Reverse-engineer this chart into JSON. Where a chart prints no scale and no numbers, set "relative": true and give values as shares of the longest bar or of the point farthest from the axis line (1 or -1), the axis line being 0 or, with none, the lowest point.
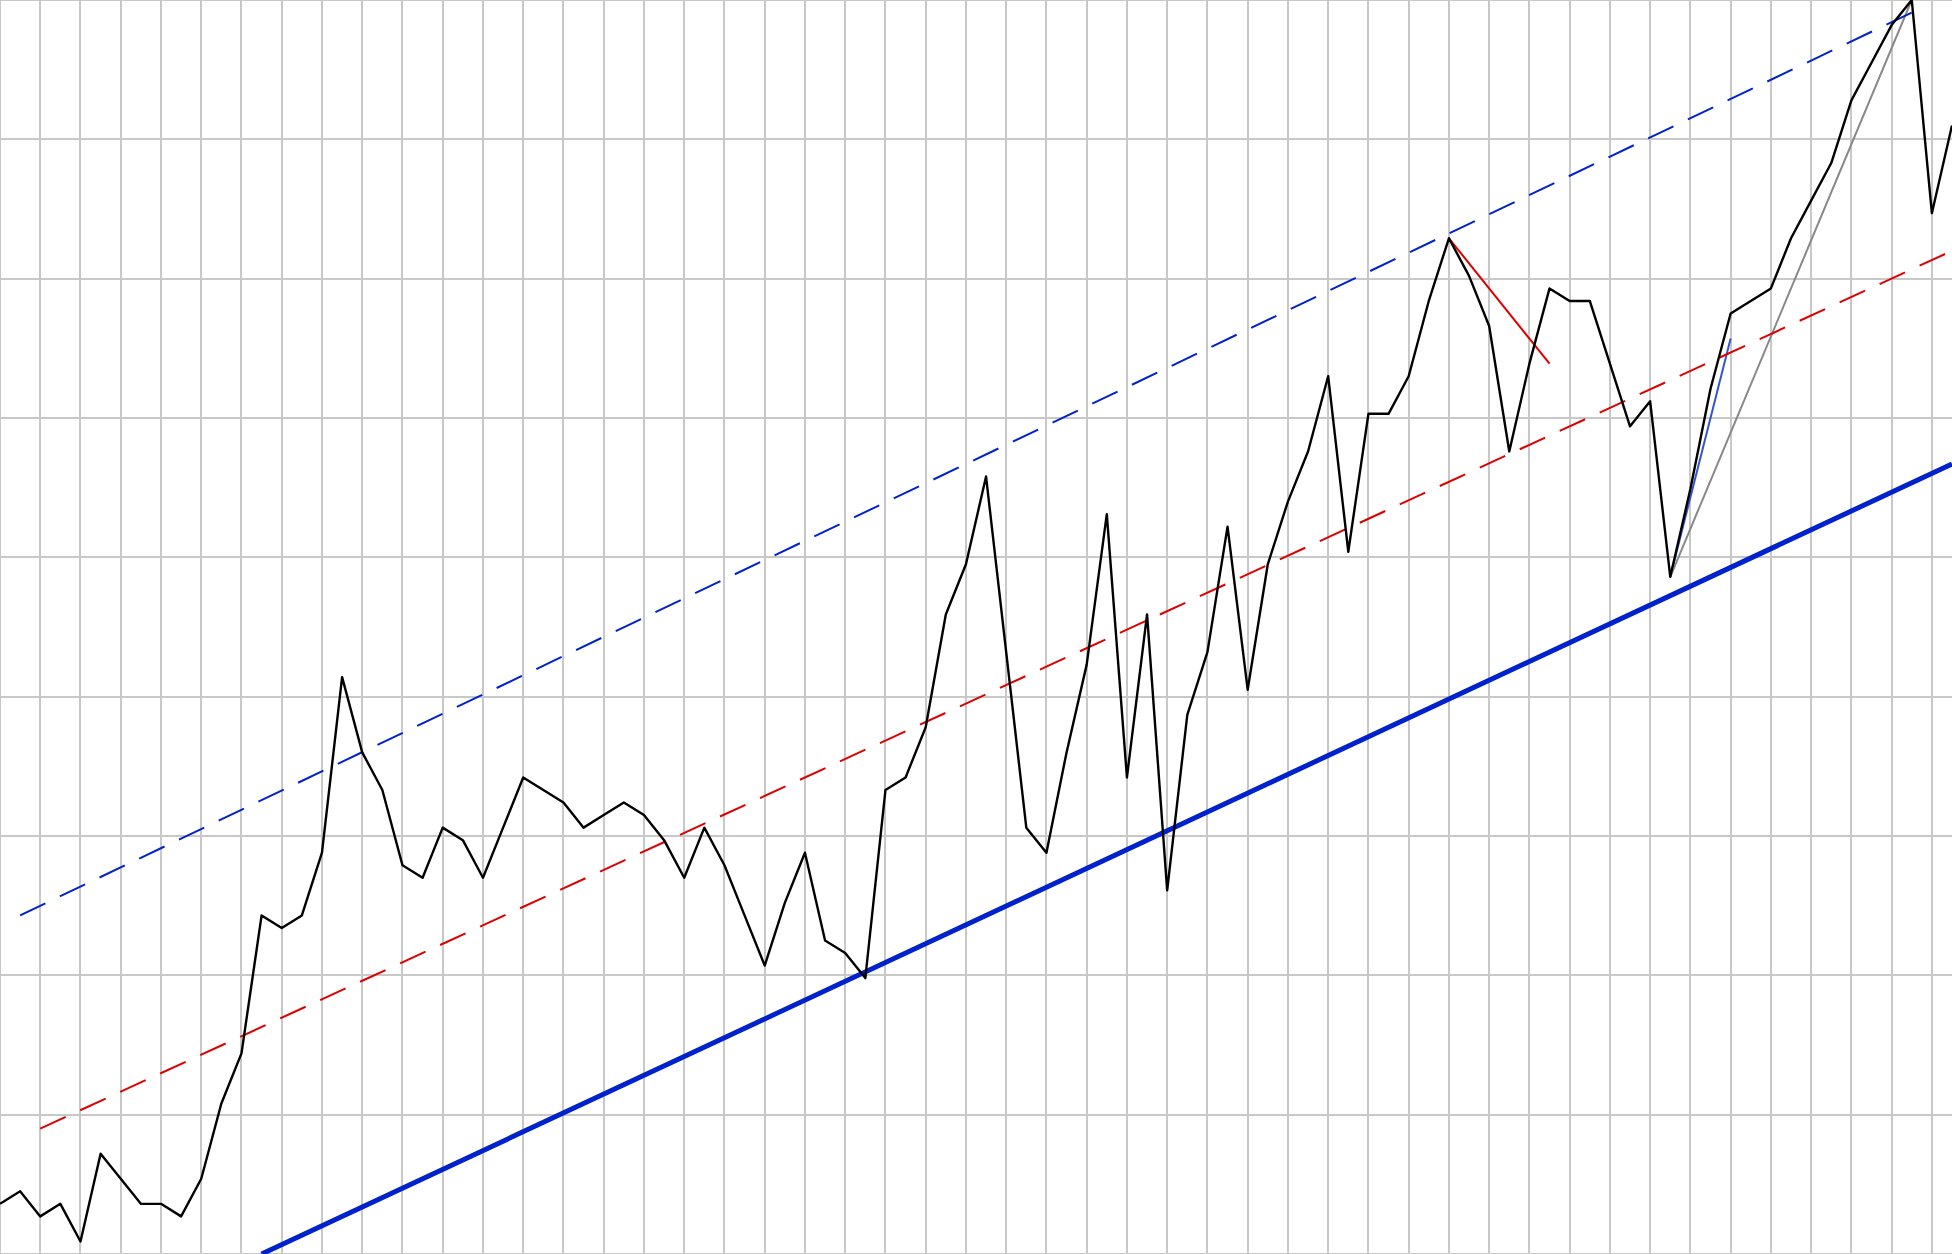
{
  "chart_data": {
    "type": "line",
    "relative": true,
    "grid": true,
    "categories": [
      null,
      null,
      null,
      null,
      null,
      null,
      null,
      null,
      null,
      null,
      null,
      null,
      null,
      null,
      null,
      null,
      null,
      null,
      null,
      null,
      null,
      null,
      null,
      null,
      null,
      null,
      null,
      null,
      null,
      null,
      null,
      null,
      null,
      null,
      null,
      null,
      null,
      null,
      null,
      null,
      null,
      null,
      null,
      null,
      null,
      null,
      null,
      null,
      null,
      null,
      null,
      null,
      null,
      null,
      null,
      null,
      null,
      null,
      null,
      null,
      null,
      null,
      null,
      null,
      null,
      null,
      null,
      null,
      null,
      null,
      null,
      null,
      null,
      null,
      null,
      null,
      null,
      null,
      null,
      null,
      null,
      null,
      null,
      null,
      null,
      null,
      null,
      null,
      null,
      null,
      null,
      null,
      null,
      null,
      null,
      null,
      null,
      null
    ],
    "series": [
      {
        "color": "#000000",
        "line_style": "solid",
        "values": [
          0.04,
          0.05,
          0.03,
          0.04,
          0.01,
          0.08,
          0.06,
          0.04,
          0.04,
          0.03,
          0.06,
          0.12,
          0.16,
          0.27,
          0.26,
          0.27,
          0.32,
          0.46,
          0.4,
          0.37,
          0.31,
          0.3,
          0.34,
          0.33,
          0.3,
          0.34,
          0.38,
          0.37,
          0.36,
          0.34,
          0.35,
          0.36,
          0.35,
          0.33,
          0.3,
          0.34,
          0.31,
          0.27,
          0.23,
          0.28,
          0.32,
          0.25,
          0.24,
          0.22,
          0.37,
          0.38,
          0.42,
          0.51,
          0.55,
          0.62,
          0.48,
          0.34,
          0.32,
          0.4,
          0.47,
          0.59,
          0.38,
          0.51,
          0.29,
          0.43,
          0.48,
          0.58,
          0.45,
          0.55,
          0.6,
          0.64,
          0.7,
          0.56,
          0.67,
          0.67,
          0.7,
          0.76,
          0.81,
          0.78,
          0.74,
          0.64,
          0.71,
          0.77,
          0.76,
          0.76,
          0.71,
          0.66,
          0.68,
          0.54,
          0.61,
          0.69,
          0.75,
          0.76,
          0.77,
          0.81,
          0.84,
          0.87,
          0.92,
          0.95,
          0.98,
          1.0,
          0.83,
          0.9
        ]
      },
      {
        "color": "#0022cc",
        "line_style": "solid",
        "values": [
          null,
          null,
          null,
          null,
          null,
          null,
          null,
          null,
          null,
          null,
          null,
          null,
          null,
          0.0,
          null,
          null,
          null,
          null,
          null,
          null,
          null,
          null,
          null,
          null,
          null,
          null,
          null,
          null,
          null,
          null,
          null,
          null,
          null,
          null,
          null,
          null,
          null,
          null,
          null,
          null,
          null,
          null,
          null,
          null,
          null,
          null,
          null,
          null,
          null,
          null,
          null,
          null,
          null,
          null,
          null,
          null,
          null,
          null,
          null,
          null,
          null,
          null,
          null,
          null,
          null,
          null,
          null,
          null,
          null,
          null,
          null,
          null,
          null,
          null,
          null,
          null,
          null,
          null,
          null,
          null,
          null,
          null,
          null,
          null,
          null,
          null,
          null,
          null,
          null,
          null,
          null,
          null,
          null,
          null,
          null,
          null,
          null,
          0.63
        ]
      },
      {
        "color": "#dd0000",
        "line_style": "dashed",
        "values": [
          null,
          null,
          0.1,
          null,
          null,
          null,
          null,
          null,
          null,
          null,
          null,
          null,
          null,
          null,
          null,
          null,
          null,
          null,
          null,
          null,
          null,
          null,
          null,
          null,
          null,
          null,
          null,
          null,
          null,
          null,
          null,
          null,
          null,
          null,
          null,
          null,
          null,
          null,
          null,
          null,
          null,
          null,
          null,
          null,
          null,
          null,
          null,
          null,
          null,
          null,
          null,
          null,
          null,
          null,
          null,
          null,
          null,
          null,
          null,
          null,
          null,
          null,
          null,
          null,
          null,
          null,
          null,
          null,
          null,
          null,
          null,
          null,
          null,
          null,
          null,
          null,
          null,
          null,
          null,
          null,
          null,
          null,
          null,
          null,
          null,
          null,
          null,
          null,
          null,
          null,
          null,
          null,
          null,
          null,
          null,
          null,
          null,
          0.8
        ]
      },
      {
        "color": "#0022cc",
        "line_style": "dashed",
        "values": [
          null,
          0.27,
          null,
          null,
          null,
          null,
          null,
          null,
          null,
          null,
          null,
          null,
          null,
          null,
          null,
          null,
          null,
          null,
          null,
          null,
          null,
          null,
          null,
          null,
          null,
          null,
          null,
          null,
          null,
          null,
          null,
          null,
          null,
          null,
          null,
          null,
          null,
          null,
          null,
          null,
          null,
          null,
          null,
          null,
          null,
          null,
          null,
          null,
          null,
          null,
          null,
          null,
          null,
          null,
          null,
          null,
          null,
          null,
          null,
          null,
          null,
          null,
          null,
          null,
          null,
          null,
          null,
          null,
          null,
          null,
          null,
          null,
          null,
          null,
          null,
          null,
          null,
          null,
          null,
          null,
          null,
          null,
          null,
          null,
          null,
          null,
          null,
          null,
          null,
          null,
          null,
          null,
          null,
          null,
          null,
          0.99,
          null,
          null
        ]
      },
      {
        "color": "#dd0000",
        "line_style": "solid",
        "values": [
          null,
          null,
          null,
          null,
          null,
          null,
          null,
          null,
          null,
          null,
          null,
          null,
          null,
          null,
          null,
          null,
          null,
          null,
          null,
          null,
          null,
          null,
          null,
          null,
          null,
          null,
          null,
          null,
          null,
          null,
          null,
          null,
          null,
          null,
          null,
          null,
          null,
          null,
          null,
          null,
          null,
          null,
          null,
          null,
          null,
          null,
          null,
          null,
          null,
          null,
          null,
          null,
          null,
          null,
          null,
          null,
          null,
          null,
          null,
          null,
          null,
          null,
          null,
          null,
          null,
          null,
          null,
          null,
          null,
          null,
          null,
          null,
          0.81,
          null,
          null,
          null,
          null,
          0.71,
          null,
          null,
          null,
          null,
          null,
          null,
          null,
          null,
          null,
          null,
          null,
          null,
          null,
          null,
          null,
          null,
          null,
          null,
          null,
          null
        ]
      },
      {
        "color": "#888888",
        "line_style": "solid",
        "values": [
          null,
          null,
          null,
          null,
          null,
          null,
          null,
          null,
          null,
          null,
          null,
          null,
          null,
          null,
          null,
          null,
          null,
          null,
          null,
          null,
          null,
          null,
          null,
          null,
          null,
          null,
          null,
          null,
          null,
          null,
          null,
          null,
          null,
          null,
          null,
          null,
          null,
          null,
          null,
          null,
          null,
          null,
          null,
          null,
          null,
          null,
          null,
          null,
          null,
          null,
          null,
          null,
          null,
          null,
          null,
          null,
          null,
          null,
          null,
          null,
          null,
          null,
          null,
          null,
          null,
          null,
          null,
          null,
          null,
          null,
          null,
          null,
          null,
          null,
          null,
          null,
          null,
          null,
          null,
          null,
          null,
          null,
          null,
          0.54,
          null,
          null,
          null,
          null,
          null,
          null,
          null,
          null,
          null,
          null,
          null,
          1.0,
          null,
          null
        ]
      },
      {
        "color": "#3355cc",
        "line_style": "solid",
        "values": [
          null,
          null,
          null,
          null,
          null,
          null,
          null,
          null,
          null,
          null,
          null,
          null,
          null,
          null,
          null,
          null,
          null,
          null,
          null,
          null,
          null,
          null,
          null,
          null,
          null,
          null,
          null,
          null,
          null,
          null,
          null,
          null,
          null,
          null,
          null,
          null,
          null,
          null,
          null,
          null,
          null,
          null,
          null,
          null,
          null,
          null,
          null,
          null,
          null,
          null,
          null,
          null,
          null,
          null,
          null,
          null,
          null,
          null,
          null,
          null,
          null,
          null,
          null,
          null,
          null,
          null,
          null,
          null,
          null,
          null,
          null,
          null,
          null,
          null,
          null,
          null,
          null,
          null,
          null,
          null,
          null,
          null,
          null,
          0.54,
          null,
          null,
          0.73,
          null,
          null,
          null,
          null,
          null,
          null,
          null,
          null,
          null,
          null,
          null
        ]
      }
    ]
  }
}
